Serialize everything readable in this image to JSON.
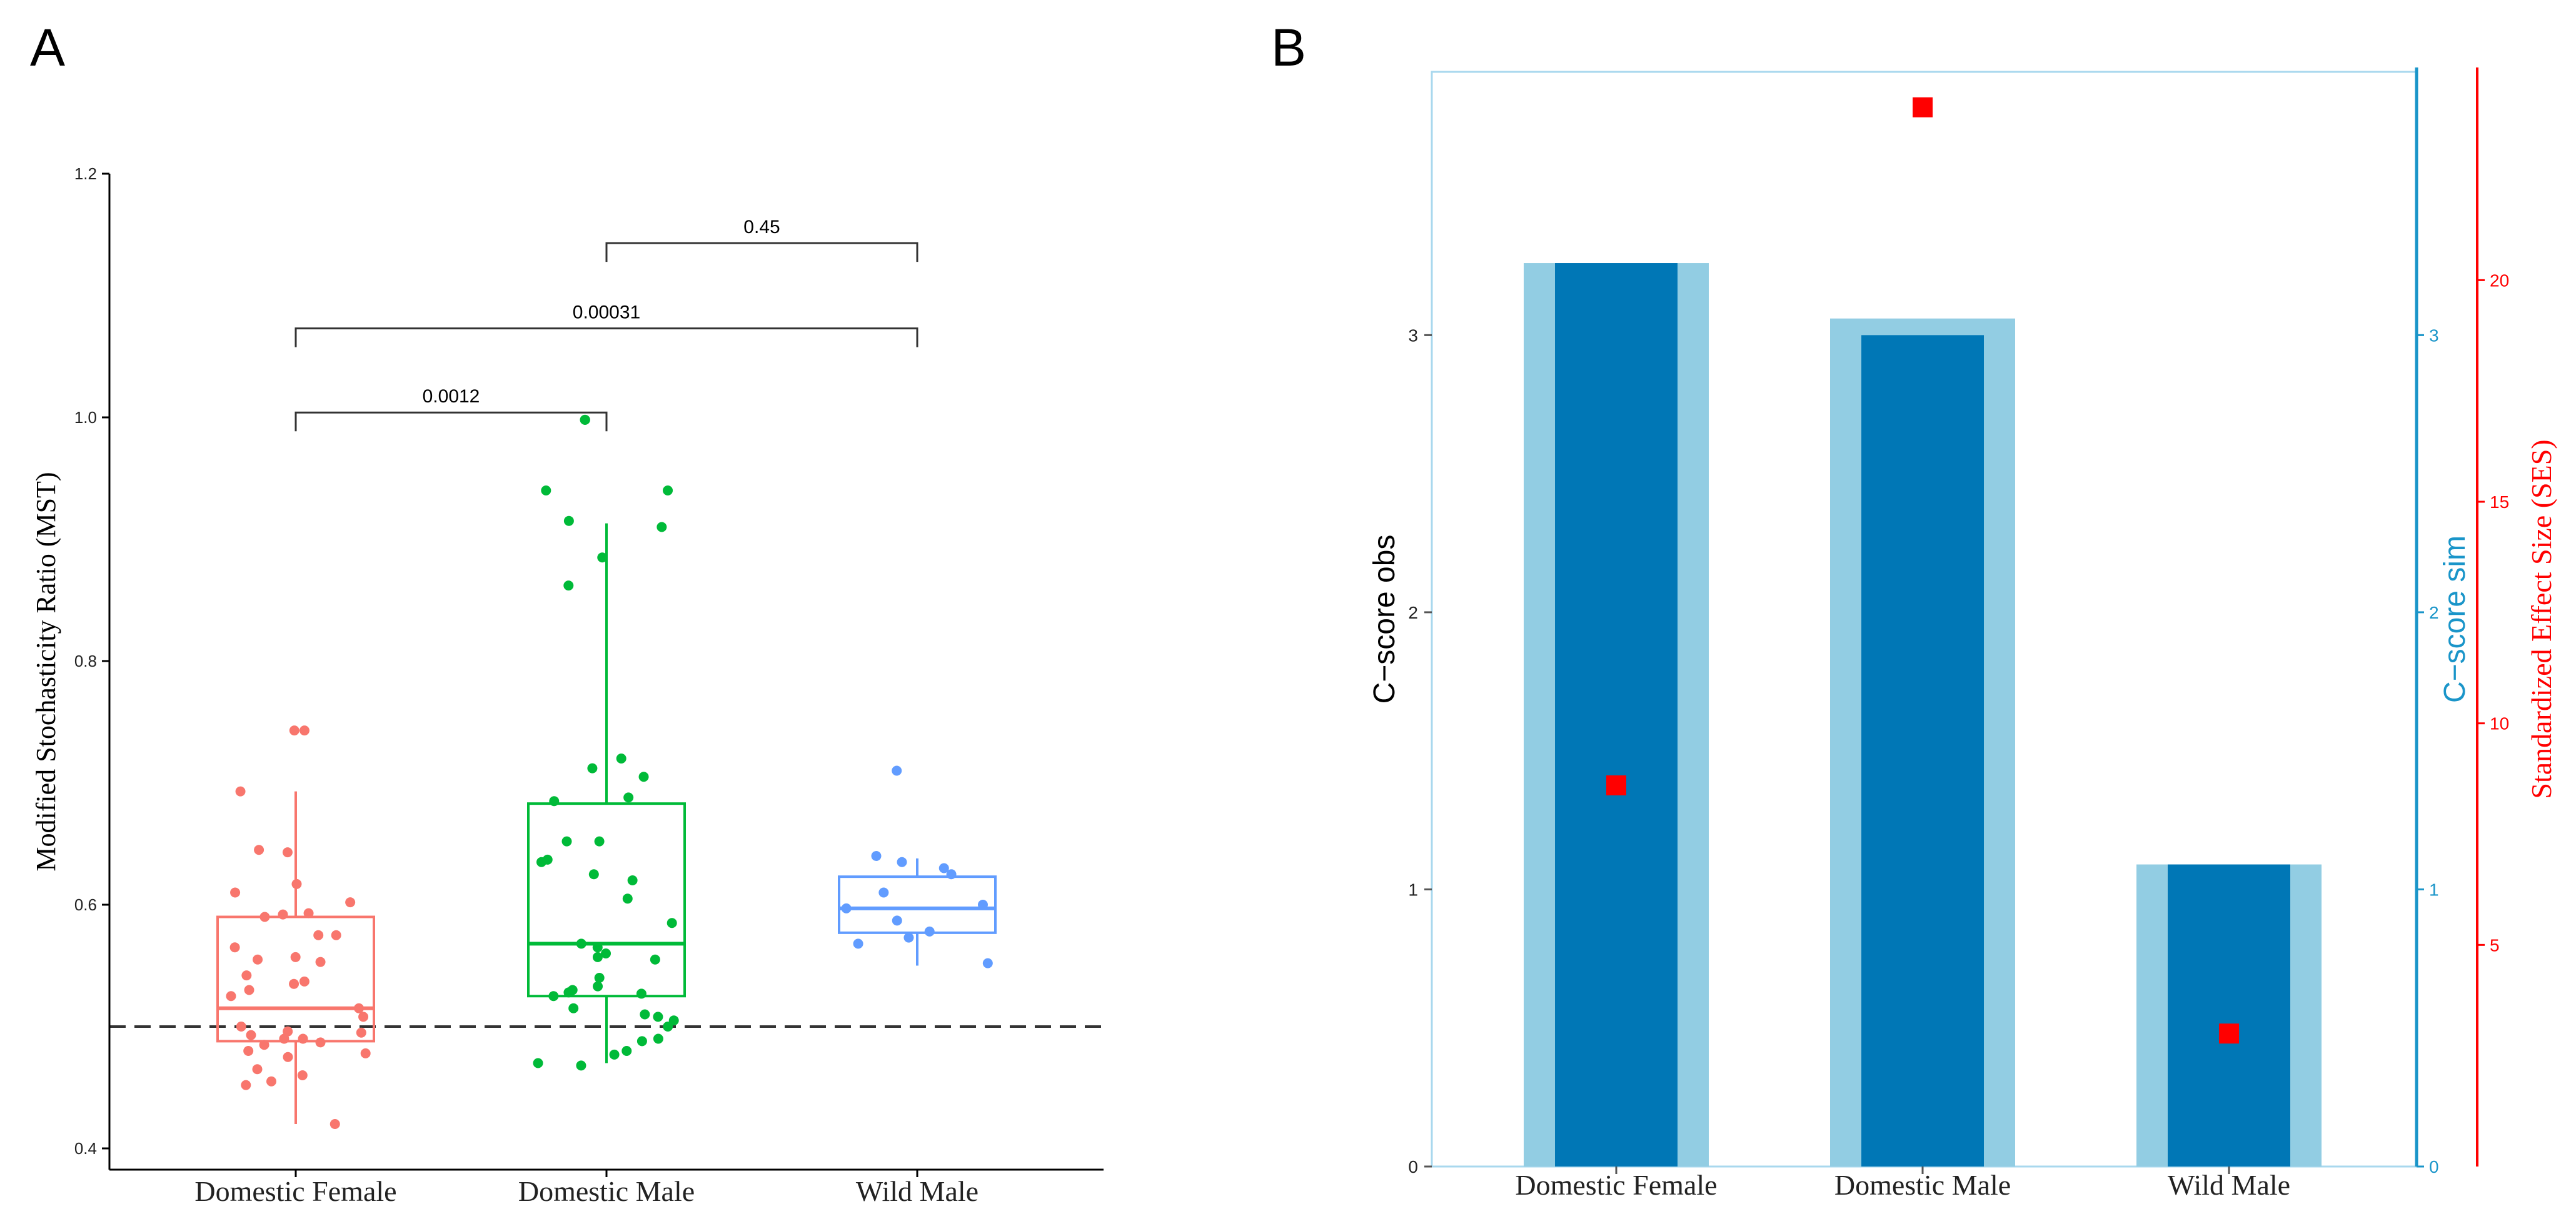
{
  "chart_data": [
    {
      "panel_label": "A",
      "type": "box",
      "ylabel": "Modified Stochasticity Ratio (MST)",
      "ylim": [
        0.4,
        1.2
      ],
      "yticks": [
        0.4,
        0.6,
        0.8,
        1.0,
        1.2
      ],
      "ytick_labels": [
        "0.4",
        "0.6",
        "0.8",
        "1.0",
        "1.2"
      ],
      "reference_line": 0.5,
      "categories": [
        "Domestic Female",
        "Domestic Male",
        "Wild Male"
      ],
      "colors": [
        "#f8766d",
        "#00ba38",
        "#619cff"
      ],
      "boxes": [
        {
          "name": "Domestic Female",
          "whisker_low": 0.42,
          "q1": 0.488,
          "median": 0.515,
          "q3": 0.59,
          "whisker_high": 0.693
        },
        {
          "name": "Domestic Male",
          "whisker_low": 0.47,
          "q1": 0.525,
          "median": 0.568,
          "q3": 0.683,
          "whisker_high": 0.913
        },
        {
          "name": "Wild Male",
          "whisker_low": 0.55,
          "q1": 0.577,
          "median": 0.597,
          "q3": 0.623,
          "whisker_high": 0.638
        }
      ],
      "points": [
        [
          0.743,
          0.743,
          0.693,
          0.645,
          0.643,
          0.617,
          0.61,
          0.602,
          0.593,
          0.592,
          0.59,
          0.575,
          0.575,
          0.565,
          0.557,
          0.555,
          0.553,
          0.542,
          0.537,
          0.535,
          0.53,
          0.525,
          0.515,
          0.508,
          0.5,
          0.496,
          0.495,
          0.493,
          0.49,
          0.49,
          0.487,
          0.485,
          0.48,
          0.478,
          0.475,
          0.465,
          0.46,
          0.455,
          0.452,
          0.42
        ],
        [
          0.998,
          0.998,
          0.94,
          0.94,
          0.915,
          0.91,
          0.885,
          0.862,
          0.72,
          0.712,
          0.705,
          0.688,
          0.685,
          0.652,
          0.652,
          0.637,
          0.635,
          0.625,
          0.62,
          0.605,
          0.585,
          0.568,
          0.565,
          0.56,
          0.557,
          0.555,
          0.54,
          0.533,
          0.53,
          0.528,
          0.527,
          0.525,
          0.515,
          0.51,
          0.508,
          0.505,
          0.5,
          0.49,
          0.488,
          0.48,
          0.477,
          0.47,
          0.468
        ],
        [
          0.71,
          0.64,
          0.635,
          0.63,
          0.625,
          0.61,
          0.6,
          0.597,
          0.587,
          0.578,
          0.573,
          0.568,
          0.552
        ]
      ],
      "comparisons": [
        {
          "groups": [
            1,
            2
          ],
          "label": "0.45"
        },
        {
          "groups": [
            0,
            2
          ],
          "label": "0.00031"
        },
        {
          "groups": [
            0,
            1
          ],
          "label": "0.0012"
        }
      ]
    },
    {
      "panel_label": "B",
      "type": "bar",
      "categories": [
        "Domestic Female",
        "Domestic Male",
        "Wild Male"
      ],
      "ylabel_left": "C−score obs",
      "ylabel_right_1": "C−score sim",
      "ylabel_right_2": "Standardized Effect Size (SES)",
      "obs_ylim": [
        0,
        3.95
      ],
      "obs_ticks": [
        0,
        1,
        2,
        3
      ],
      "sim_ticks": [
        0,
        1,
        2,
        3
      ],
      "ses_ylim": [
        0,
        24.7
      ],
      "ses_ticks": [
        5,
        10,
        15,
        20
      ],
      "series": [
        {
          "name": "C−score obs",
          "color": "#92cde3",
          "values": [
            3.26,
            3.06,
            1.09
          ]
        },
        {
          "name": "C−score sim",
          "color": "#0077b6",
          "values": [
            3.26,
            3.0,
            1.09
          ]
        },
        {
          "name": "Standardized Effect Size (SES)",
          "color": "#ff0000",
          "values": [
            8.6,
            23.9,
            3.0
          ]
        }
      ],
      "right_axis_colors": {
        "sim": "#1a95c9",
        "ses": "#ff0000"
      }
    }
  ]
}
